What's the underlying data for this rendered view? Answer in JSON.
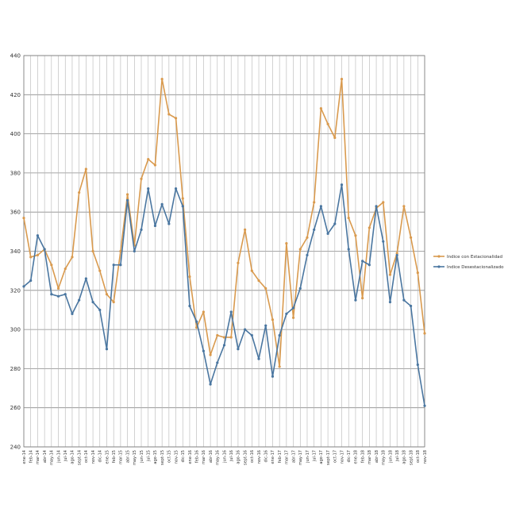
{
  "chart_data": {
    "type": "line",
    "ylim": [
      240,
      440
    ],
    "yticks": [
      240,
      260,
      280,
      300,
      320,
      340,
      360,
      380,
      400,
      420,
      440
    ],
    "grid": true,
    "legend_position": "right",
    "categories": [
      "ene-14",
      "feb-14",
      "mar-14",
      "abr-14",
      "may-14",
      "jun-14",
      "jul-14",
      "ago-14",
      "sept-14",
      "oct-14",
      "nov-14",
      "dic-14",
      "ene-15",
      "feb-15",
      "mar-15",
      "abr-15",
      "may-15",
      "jun-15",
      "jul-15",
      "ago-15",
      "sept-15",
      "oct-15",
      "nov-15",
      "dic-15",
      "ene-16",
      "feb-16",
      "mar-16",
      "abr-16",
      "may-16",
      "jun-16",
      "jul-16",
      "ago-16",
      "sept-16",
      "oct-16",
      "nov-16",
      "dic-16",
      "ene-17",
      "feb-17",
      "mar-17",
      "abr-17",
      "may-17",
      "jun-17",
      "jul-17",
      "ago-17",
      "sept-17",
      "oct-17",
      "nov-17",
      "dic-17",
      "ene-18",
      "feb-18",
      "mar-18",
      "abr-18",
      "may-18",
      "jun-18",
      "jul-18",
      "ago-18",
      "sept-18",
      "oct-18",
      "nov-18"
    ],
    "series": [
      {
        "name": "Indice con Estacionalidad",
        "color": "#d99a4e",
        "values": [
          357,
          337,
          338,
          341,
          333,
          321,
          331,
          337,
          370,
          382,
          340,
          330,
          318,
          314,
          340,
          369,
          343,
          377,
          387,
          384,
          428,
          410,
          408,
          367,
          327,
          301,
          309,
          287,
          297,
          296,
          296,
          334,
          351,
          330,
          325,
          321,
          305,
          281,
          344,
          306,
          341,
          347,
          365,
          413,
          405,
          398,
          428,
          357,
          348,
          316,
          352,
          362,
          365,
          328,
          339,
          363,
          347,
          329,
          298
        ]
      },
      {
        "name": "Indice Desestacionalizado",
        "color": "#4a76a0",
        "values": [
          322,
          325,
          348,
          341,
          318,
          317,
          318,
          308,
          315,
          326,
          314,
          310,
          290,
          333,
          333,
          366,
          340,
          351,
          372,
          353,
          364,
          354,
          372,
          363,
          312,
          304,
          289,
          272,
          283,
          292,
          309,
          290,
          300,
          297,
          285,
          302,
          276,
          297,
          308,
          311,
          321,
          338,
          351,
          363,
          349,
          354,
          374,
          341,
          315,
          335,
          333,
          363,
          345,
          314,
          338,
          315,
          312,
          282,
          261
        ]
      }
    ]
  }
}
